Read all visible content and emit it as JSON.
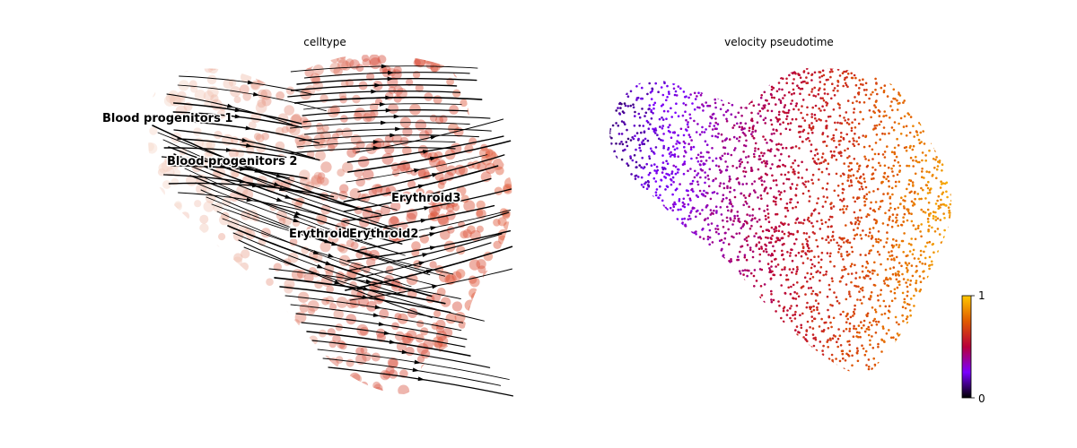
{
  "chart_data": [
    {
      "type": "scatter",
      "title": "celltype",
      "subtype": "umap velocity streamlines",
      "point_color_scale": "white to red (cell type)",
      "axes_visible": false,
      "cluster_labels": [
        "Blood progenitors 1",
        "Blood progenitors 2",
        "Erythroid3",
        "Erythroid1",
        "Erythroid2"
      ]
    },
    {
      "type": "scatter",
      "title": "velocity pseudotime",
      "colormap": "gnuplot",
      "colors": [
        "#000000",
        "#7a00ff",
        "#b8003a",
        "#e05a00",
        "#ffc800"
      ],
      "colorbar": {
        "min_label": "0",
        "max_label": "1",
        "range": [
          0,
          1
        ]
      },
      "axes_visible": false
    }
  ]
}
